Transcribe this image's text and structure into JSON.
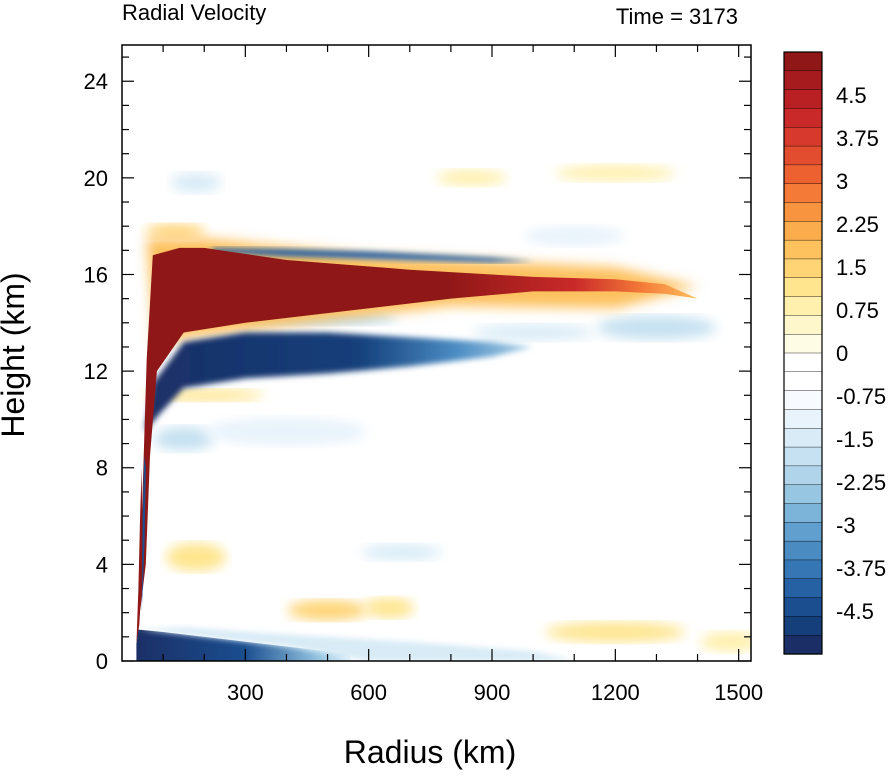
{
  "chart_data": {
    "type": "heatmap",
    "title_left": "Radial Velocity",
    "title_right": "Time = 3173",
    "xlabel": "Radius (km)",
    "ylabel": "Height (km)",
    "xlim": [
      0,
      1530
    ],
    "ylim": [
      0,
      25.5
    ],
    "xticks": [
      300,
      600,
      900,
      1200,
      1500
    ],
    "yticks": [
      0,
      4,
      8,
      12,
      16,
      20,
      24
    ],
    "colorbar": {
      "min": -5.25,
      "max": 5.25,
      "step": 0.375,
      "labels": [
        "4.5",
        "3.75",
        "3",
        "2.25",
        "1.5",
        "0.75",
        "0",
        "-0.75",
        "-1.5",
        "-2.25",
        "-3",
        "-3.75",
        "-4.5"
      ],
      "colors_top_to_bottom": [
        "#8f1717",
        "#a51b1e",
        "#b82023",
        "#c92a29",
        "#d73a2d",
        "#e24d2f",
        "#ed6131",
        "#f47a38",
        "#f8943f",
        "#fbac4c",
        "#fdc15e",
        "#fed474",
        "#fee58e",
        "#fff0ad",
        "#fff7cc",
        "#fffce6",
        "#ffffff",
        "#ffffff",
        "#f7fbff",
        "#e8f3fb",
        "#d8ebf6",
        "#c6e1f1",
        "#b0d5ea",
        "#96c6e2",
        "#7bb3d9",
        "#61a0ce",
        "#4a8bc2",
        "#3676b4",
        "#2561a3",
        "#1a4e8f",
        "#143f7a",
        "#1b2f66"
      ]
    },
    "features": [
      {
        "name": "upper-outflow",
        "sign": "positive",
        "value": 5.25,
        "r_start": 50,
        "r_end": 1400,
        "z_center": 15.5
      },
      {
        "name": "inflow-below-outflow",
        "sign": "negative",
        "value": -5.25,
        "r_start": 60,
        "r_end": 1000,
        "z_center": 12.5
      },
      {
        "name": "thin-inflow-above",
        "sign": "negative",
        "value": -3.0,
        "r_start": 300,
        "r_end": 700,
        "z_center": 16.9
      },
      {
        "name": "boundary-layer-inflow",
        "sign": "negative",
        "value": -5.25,
        "r_start": 35,
        "r_end": 550,
        "z_center": 0.5
      },
      {
        "name": "eyewall-updraft-outflow",
        "sign": "positive",
        "value": 5.25,
        "r_start": 35,
        "r_end": 65,
        "z_center": 3.0
      }
    ]
  }
}
